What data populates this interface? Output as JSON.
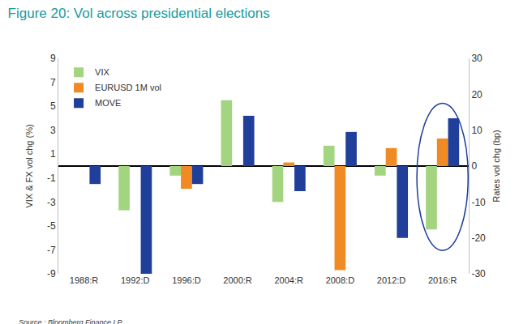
{
  "chart_data": {
    "type": "bar",
    "title": "Figure 20: Vol across presidential elections",
    "source": "Source : Bloomberg Finance LP",
    "categories": [
      "1988:R",
      "1992:D",
      "1996:D",
      "2000:R",
      "2004:R",
      "2008:D",
      "2012:D",
      "2016:R"
    ],
    "series": [
      {
        "name": "VIX",
        "color": "#a3d47f",
        "values": [
          null,
          -3.7,
          -0.8,
          5.5,
          -3,
          1.7,
          -0.8,
          -5.3
        ]
      },
      {
        "name": "EURUSD 1M vol",
        "color": "#f08a24",
        "values": [
          null,
          null,
          -1.9,
          null,
          0.3,
          -8.7,
          1.5,
          2.3
        ]
      },
      {
        "name": "MOVE",
        "color": "#1f3f9a",
        "axis": "y2",
        "values": [
          -5,
          -30,
          -5,
          14,
          -7,
          9.5,
          -20,
          13.3
        ]
      }
    ],
    "ylabel": "VIX & FX vol chg (%)",
    "y2label": "Rates vol chg (bp)",
    "ylim": [
      -9,
      9
    ],
    "yticks": [
      -9,
      -7,
      -5,
      -3,
      -1,
      1,
      3,
      5,
      7,
      9
    ],
    "y2lim": [
      -30,
      30
    ],
    "y2ticks": [
      -30,
      -20,
      -10,
      0,
      10,
      20,
      30
    ],
    "grid": false,
    "legend": "top left"
  }
}
